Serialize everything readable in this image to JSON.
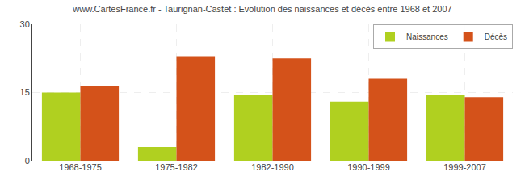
{
  "chart_data": {
    "type": "bar",
    "title": "www.CartesFrance.fr - Taurignan-Castet : Evolution des naissances et décès entre 1968 et 2007",
    "categories": [
      "1968-1975",
      "1975-1982",
      "1982-1990",
      "1990-1999",
      "1999-2007"
    ],
    "series": [
      {
        "name": "Naissances",
        "color": "#b0d020",
        "values": [
          15,
          3,
          14.5,
          13,
          14.5
        ]
      },
      {
        "name": "Décès",
        "color": "#d4521a",
        "values": [
          16.5,
          23,
          22.5,
          18,
          14
        ]
      }
    ],
    "ylim": [
      0,
      30
    ],
    "yticks": [
      0,
      15,
      30
    ],
    "grid": true,
    "legend": "upper right"
  }
}
